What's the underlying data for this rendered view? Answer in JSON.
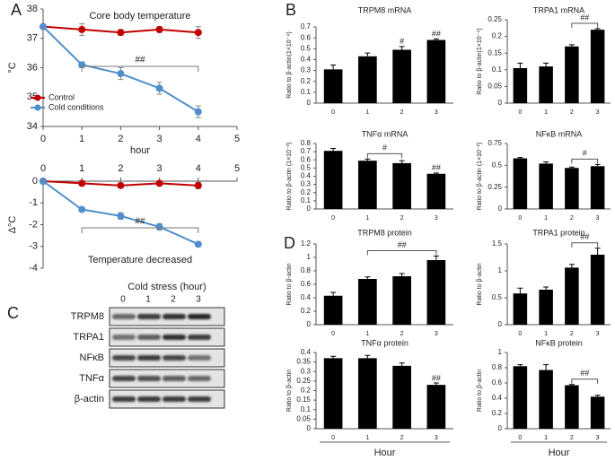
{
  "panel_labels": [
    "A",
    "B",
    "C",
    "D"
  ],
  "blot": {
    "title": "Cold stress (hour)",
    "lanes": [
      "0",
      "1",
      "2",
      "3"
    ],
    "rows": [
      "TRPM8",
      "TRPA1",
      "NFκB",
      "TNFα",
      "β-actin"
    ]
  },
  "chart_data": [
    {
      "type": "line",
      "title": "Core body temperature",
      "xlabel": "hour",
      "ylabel": "°C",
      "x": [
        0,
        1,
        2,
        3,
        4
      ],
      "xlim": [
        0,
        5
      ],
      "xticks": [
        0,
        1,
        2,
        3,
        4,
        5
      ],
      "ylim": [
        34,
        38
      ],
      "yticks": [
        34,
        35,
        36,
        37,
        38
      ],
      "legend": "lower left",
      "series": [
        {
          "name": "Control",
          "color": "#c00000",
          "values": [
            37.4,
            37.3,
            37.2,
            37.3,
            37.2
          ],
          "errors": [
            0.05,
            0.2,
            0.1,
            0.1,
            0.2
          ]
        },
        {
          "name": "Cold conditions",
          "color": "#4f8fcb",
          "values": [
            37.4,
            36.1,
            35.8,
            35.3,
            34.5
          ],
          "errors": [
            0.05,
            0.1,
            0.2,
            0.2,
            0.2
          ]
        }
      ],
      "annotations": [
        {
          "text": "##",
          "x": [
            1,
            4
          ]
        }
      ]
    },
    {
      "type": "line",
      "title": "Temperature decreased",
      "ylabel": "Δ°C",
      "x": [
        0,
        1,
        2,
        3,
        4
      ],
      "xlim": [
        0,
        5
      ],
      "xticks": [
        0,
        1,
        2,
        3,
        4,
        5
      ],
      "ylim": [
        -4,
        0
      ],
      "yticks": [
        -4,
        -3,
        -2,
        -1,
        0
      ],
      "series": [
        {
          "color": "#c00000",
          "values": [
            0,
            -0.1,
            -0.2,
            -0.1,
            -0.2
          ],
          "errors": [
            0,
            0.1,
            0.1,
            0.1,
            0.15
          ]
        },
        {
          "color": "#4f8fcb",
          "values": [
            0,
            -1.3,
            -1.6,
            -2.1,
            -2.9
          ],
          "errors": [
            0,
            0.1,
            0.15,
            0.15,
            0.1
          ]
        }
      ],
      "annotations": [
        {
          "text": "##",
          "x": [
            1,
            4
          ]
        }
      ]
    },
    {
      "type": "bar",
      "title": "TRPM8 mRNA",
      "ylabel": "Ratio to β-actin(1×10⁻⁴)",
      "color": "#000000",
      "categories": [
        "0",
        "1",
        "2",
        "3"
      ],
      "values": [
        0.31,
        0.43,
        0.49,
        0.58
      ],
      "errors": [
        0.04,
        0.03,
        0.03,
        0.01
      ],
      "ylim": [
        0,
        0.7
      ],
      "yticks": [
        0,
        0.1,
        0.2,
        0.3,
        0.4,
        0.5,
        0.6,
        0.7
      ],
      "annotations": [
        {
          "text": "#",
          "x": [
            2
          ]
        },
        {
          "text": "##",
          "x": [
            3
          ]
        }
      ]
    },
    {
      "type": "bar",
      "title": "TRPA1 mRNA",
      "ylabel": "Ratio to β-actin(1×10⁻⁴)",
      "color": "#000000",
      "categories": [
        "0",
        "1",
        "2",
        "3"
      ],
      "values": [
        0.105,
        0.11,
        0.17,
        0.22
      ],
      "errors": [
        0.015,
        0.01,
        0.005,
        0.003
      ],
      "ylim": [
        0,
        0.25
      ],
      "yticks": [
        0,
        0.05,
        0.1,
        0.15,
        0.2,
        0.25
      ],
      "annotations": [
        {
          "text": "##",
          "x": [
            2,
            3
          ]
        }
      ]
    },
    {
      "type": "bar",
      "title": "TNFα mRNA",
      "ylabel": "Ratio to β-actin (1×10⁻³)",
      "color": "#000000",
      "categories": [
        "0",
        "1",
        "2",
        "3"
      ],
      "values": [
        0.71,
        0.59,
        0.56,
        0.43
      ],
      "errors": [
        0.03,
        0.02,
        0.03,
        0.01
      ],
      "ylim": [
        0,
        0.8
      ],
      "yticks": [
        0,
        0.1,
        0.2,
        0.3,
        0.4,
        0.5,
        0.6,
        0.7,
        0.8
      ],
      "annotations": [
        {
          "text": "#",
          "x": [
            1,
            2
          ]
        },
        {
          "text": "##",
          "x": [
            3
          ]
        }
      ]
    },
    {
      "type": "bar",
      "title": "NFκB mRNA",
      "ylabel": "Ratio to β-actin (1×10⁻²)",
      "color": "#000000",
      "categories": [
        "0",
        "1",
        "2",
        "3"
      ],
      "values": [
        0.58,
        0.52,
        0.47,
        0.49
      ],
      "errors": [
        0.01,
        0.02,
        0.01,
        0.02
      ],
      "ylim": [
        0,
        0.75
      ],
      "yticks": [
        0,
        0.25,
        0.5,
        0.75
      ],
      "annotations": [
        {
          "text": "#",
          "x": [
            2,
            3
          ]
        }
      ]
    },
    {
      "type": "bar",
      "title": "TRPM8 protein",
      "ylabel": "Ratio to β-actin",
      "color": "#000000",
      "categories": [
        "0",
        "1",
        "2",
        "3"
      ],
      "values": [
        0.43,
        0.68,
        0.72,
        0.96
      ],
      "errors": [
        0.05,
        0.03,
        0.04,
        0.06
      ],
      "ylim": [
        0,
        1.2
      ],
      "yticks": [
        0,
        0.2,
        0.4,
        0.6,
        0.8,
        1,
        1.2
      ],
      "annotations": [
        {
          "text": "##",
          "x": [
            1,
            3
          ]
        }
      ]
    },
    {
      "type": "bar",
      "title": "TRPA1 protein",
      "ylabel": "Ratio to β-actin",
      "color": "#000000",
      "categories": [
        "0",
        "1",
        "2",
        "3"
      ],
      "values": [
        0.58,
        0.65,
        1.06,
        1.3
      ],
      "errors": [
        0.1,
        0.05,
        0.06,
        0.12
      ],
      "ylim": [
        0,
        1.5
      ],
      "yticks": [
        0,
        0.5,
        1,
        1.5
      ],
      "annotations": [
        {
          "text": "##",
          "x": [
            2,
            3
          ]
        }
      ]
    },
    {
      "type": "bar",
      "title": "TNFα protein",
      "ylabel": "Ratio to β-actin",
      "xlabel": "Hour",
      "color": "#000000",
      "categories": [
        "0",
        "1",
        "2",
        "3"
      ],
      "values": [
        0.37,
        0.37,
        0.33,
        0.23
      ],
      "errors": [
        0.01,
        0.015,
        0.015,
        0.01
      ],
      "ylim": [
        0,
        0.4
      ],
      "yticks": [
        0,
        0.05,
        0.1,
        0.15,
        0.2,
        0.25,
        0.3,
        0.35,
        0.4
      ],
      "annotations": [
        {
          "text": "##",
          "x": [
            3
          ]
        }
      ]
    },
    {
      "type": "bar",
      "title": "NFκB protein",
      "ylabel": "Ratio to β-actin",
      "xlabel": "Hour",
      "color": "#000000",
      "categories": [
        "0",
        "1",
        "2",
        "3"
      ],
      "values": [
        0.82,
        0.77,
        0.57,
        0.42
      ],
      "errors": [
        0.02,
        0.07,
        0.01,
        0.02
      ],
      "ylim": [
        0,
        1
      ],
      "yticks": [
        0,
        0.2,
        0.4,
        0.6,
        0.8,
        1
      ],
      "annotations": [
        {
          "text": "##",
          "x": [
            2,
            3
          ]
        }
      ]
    }
  ]
}
